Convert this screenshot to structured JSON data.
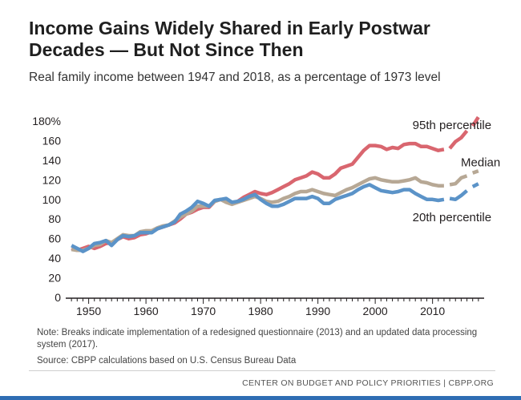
{
  "title": "Income Gains Widely Shared in Early Postwar Decades — But Not Since Then",
  "subtitle": "Real family income between 1947 and 2018, as a percentage of 1973 level",
  "note": "Note: Breaks indicate implementation of a redesigned questionnaire (2013) and an updated data processing system (2017).",
  "source": "Source: CBPP calculations based on U.S. Census Bureau Data",
  "credit": "CENTER ON BUDGET AND POLICY PRIORITIES | CBPP.ORG",
  "colors": {
    "p95": "#d9666f",
    "median": "#b7a895",
    "p20": "#5b93c8",
    "axis": "#231f20",
    "bar": "#2f6db3"
  },
  "chart_data": {
    "type": "line",
    "xlim": [
      1946,
      2019
    ],
    "ylim": [
      0,
      180
    ],
    "x_ticks": [
      1950,
      1960,
      1970,
      1980,
      1990,
      2000,
      2010
    ],
    "x_tick_labels": [
      "1950",
      "1960",
      "1970",
      "1980",
      "1990",
      "2000",
      "2010"
    ],
    "y_ticks": [
      0,
      20,
      40,
      60,
      80,
      100,
      120,
      140,
      160,
      180
    ],
    "y_tick_labels": [
      "0",
      "20",
      "40",
      "60",
      "80",
      "100",
      "120",
      "140",
      "160",
      "180%"
    ],
    "grid": false,
    "breaks": [
      2013,
      2017
    ],
    "series": [
      {
        "name": "95th percentile",
        "color_key": "p95",
        "x": [
          1947,
          1948,
          1949,
          1950,
          1951,
          1952,
          1953,
          1954,
          1955,
          1956,
          1957,
          1958,
          1959,
          1960,
          1961,
          1962,
          1963,
          1964,
          1965,
          1966,
          1967,
          1968,
          1969,
          1970,
          1971,
          1972,
          1973,
          1974,
          1975,
          1976,
          1977,
          1978,
          1979,
          1980,
          1981,
          1982,
          1983,
          1984,
          1985,
          1986,
          1987,
          1988,
          1989,
          1990,
          1991,
          1992,
          1993,
          1994,
          1995,
          1996,
          1997,
          1998,
          1999,
          2000,
          2001,
          2002,
          2003,
          2004,
          2005,
          2006,
          2007,
          2008,
          2009,
          2010,
          2011,
          2012,
          2013,
          2014,
          2015,
          2016,
          2017,
          2018
        ],
        "values": [
          50,
          48,
          50,
          52,
          50,
          52,
          55,
          56,
          59,
          62,
          60,
          61,
          64,
          65,
          67,
          70,
          72,
          74,
          76,
          80,
          85,
          87,
          90,
          92,
          92,
          98,
          100,
          98,
          96,
          98,
          102,
          105,
          108,
          106,
          105,
          107,
          110,
          113,
          116,
          120,
          122,
          124,
          128,
          126,
          122,
          122,
          126,
          132,
          134,
          136,
          143,
          150,
          155,
          155,
          154,
          151,
          153,
          152,
          156,
          157,
          157,
          154,
          154,
          152,
          150,
          151,
          152,
          159,
          163,
          170,
          175,
          184
        ]
      },
      {
        "name": "Median",
        "color_key": "median",
        "x": [
          1947,
          1948,
          1949,
          1950,
          1951,
          1952,
          1953,
          1954,
          1955,
          1956,
          1957,
          1958,
          1959,
          1960,
          1961,
          1962,
          1963,
          1964,
          1965,
          1966,
          1967,
          1968,
          1969,
          1970,
          1971,
          1972,
          1973,
          1974,
          1975,
          1976,
          1977,
          1978,
          1979,
          1980,
          1981,
          1982,
          1983,
          1984,
          1985,
          1986,
          1987,
          1988,
          1989,
          1990,
          1991,
          1992,
          1993,
          1994,
          1995,
          1996,
          1997,
          1998,
          1999,
          2000,
          2001,
          2002,
          2003,
          2004,
          2005,
          2006,
          2007,
          2008,
          2009,
          2010,
          2011,
          2012,
          2013,
          2014,
          2015,
          2016,
          2017,
          2018
        ],
        "values": [
          49,
          48,
          48,
          50,
          53,
          54,
          58,
          56,
          60,
          64,
          63,
          63,
          67,
          68,
          68,
          71,
          73,
          74,
          78,
          82,
          85,
          88,
          93,
          93,
          93,
          98,
          100,
          97,
          95,
          97,
          99,
          101,
          103,
          101,
          98,
          97,
          98,
          101,
          103,
          106,
          108,
          108,
          110,
          108,
          106,
          105,
          104,
          107,
          110,
          112,
          115,
          118,
          121,
          122,
          120,
          119,
          118,
          118,
          119,
          120,
          122,
          118,
          117,
          115,
          114,
          114,
          115,
          116,
          122,
          124,
          127,
          129
        ]
      },
      {
        "name": "20th percentile",
        "color_key": "p20",
        "x": [
          1947,
          1948,
          1949,
          1950,
          1951,
          1952,
          1953,
          1954,
          1955,
          1956,
          1957,
          1958,
          1959,
          1960,
          1961,
          1962,
          1963,
          1964,
          1965,
          1966,
          1967,
          1968,
          1969,
          1970,
          1971,
          1972,
          1973,
          1974,
          1975,
          1976,
          1977,
          1978,
          1979,
          1980,
          1981,
          1982,
          1983,
          1984,
          1985,
          1986,
          1987,
          1988,
          1989,
          1990,
          1991,
          1992,
          1993,
          1994,
          1995,
          1996,
          1997,
          1998,
          1999,
          2000,
          2001,
          2002,
          2003,
          2004,
          2005,
          2006,
          2007,
          2008,
          2009,
          2010,
          2011,
          2012,
          2013,
          2014,
          2015,
          2016,
          2017,
          2018
        ],
        "values": [
          53,
          50,
          47,
          50,
          55,
          56,
          58,
          53,
          59,
          63,
          62,
          63,
          66,
          66,
          66,
          70,
          72,
          74,
          77,
          85,
          88,
          92,
          98,
          96,
          93,
          99,
          100,
          101,
          97,
          98,
          100,
          103,
          105,
          100,
          96,
          93,
          93,
          95,
          98,
          101,
          101,
          101,
          103,
          101,
          96,
          96,
          100,
          102,
          104,
          106,
          110,
          113,
          115,
          112,
          109,
          108,
          107,
          108,
          110,
          110,
          106,
          103,
          100,
          100,
          99,
          100,
          101,
          100,
          104,
          109,
          113,
          116
        ]
      }
    ],
    "series_labels": [
      {
        "text": "95th percentile",
        "x": 2005,
        "y": 176
      },
      {
        "text": "Median",
        "x": 2010,
        "y": 138
      },
      {
        "text": "20th percentile",
        "x": 2005,
        "y": 82
      }
    ]
  }
}
